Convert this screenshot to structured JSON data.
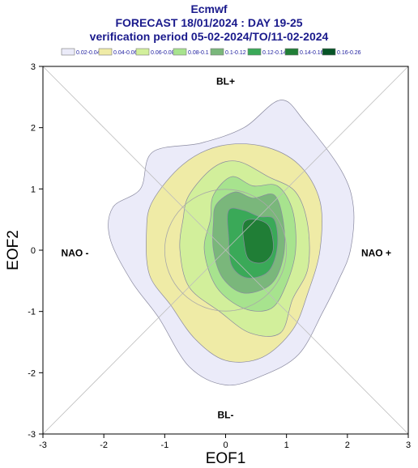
{
  "header": {
    "line1": "Ecmwf",
    "line2": "FORECAST 18/01/2024 : DAY 19-25",
    "line3": "verification period 05-02-2024/TO/11-02-2024"
  },
  "legend": [
    {
      "label": "0.02-0.04",
      "color": "#ebebf9"
    },
    {
      "label": "0.04-0.06",
      "color": "#efeba6"
    },
    {
      "label": "0.06-0.08",
      "color": "#d2ef9b"
    },
    {
      "label": "0.08-0.1",
      "color": "#a7e38e"
    },
    {
      "label": "0.1-0.12",
      "color": "#7ab77b"
    },
    {
      "label": "0.12-0.14",
      "color": "#3aa958"
    },
    {
      "label": "0.14-0.16",
      "color": "#207e36"
    },
    {
      "label": "0.16-0.26",
      "color": "#065426"
    }
  ],
  "chart_data": {
    "type": "contour",
    "xlabel": "EOF1",
    "ylabel": "EOF2",
    "xlim": [
      -3,
      3
    ],
    "ylim": [
      -3,
      3
    ],
    "xticks": [
      "-3",
      "-2",
      "-1",
      "0",
      "1",
      "2",
      "3"
    ],
    "yticks": [
      "-3",
      "-2",
      "-1",
      "0",
      "1",
      "2",
      "3"
    ],
    "regime_labels": {
      "top": "BL+",
      "bottom": "BL-",
      "left": "NAO -",
      "right": "NAO +"
    },
    "unit_circle_radius": 1,
    "contours": [
      {
        "level": "0.02-0.04",
        "fill": "#ebebf9",
        "points": [
          [
            -1.4,
            1.0
          ],
          [
            -1.2,
            1.6
          ],
          [
            -0.4,
            1.75
          ],
          [
            0.3,
            2.0
          ],
          [
            0.9,
            2.45
          ],
          [
            1.3,
            2.1
          ],
          [
            1.9,
            1.3
          ],
          [
            2.1,
            0.7
          ],
          [
            2.05,
            0.0
          ],
          [
            1.85,
            -0.5
          ],
          [
            1.6,
            -1.0
          ],
          [
            1.2,
            -1.7
          ],
          [
            0.6,
            -2.05
          ],
          [
            0.0,
            -2.2
          ],
          [
            -0.6,
            -1.9
          ],
          [
            -1.1,
            -1.1
          ],
          [
            -1.55,
            -0.5
          ],
          [
            -1.9,
            0.2
          ],
          [
            -1.85,
            0.7
          ]
        ]
      },
      {
        "level": "0.04-0.06",
        "fill": "#efeba6",
        "points": [
          [
            -1.2,
            0.8
          ],
          [
            -0.7,
            1.4
          ],
          [
            -0.1,
            1.7
          ],
          [
            0.6,
            1.7
          ],
          [
            1.2,
            1.4
          ],
          [
            1.55,
            0.8
          ],
          [
            1.55,
            0.0
          ],
          [
            1.35,
            -0.7
          ],
          [
            1.1,
            -1.3
          ],
          [
            0.6,
            -1.75
          ],
          [
            0.0,
            -1.8
          ],
          [
            -0.5,
            -1.45
          ],
          [
            -0.9,
            -0.9
          ],
          [
            -1.25,
            -0.4
          ],
          [
            -1.3,
            0.3
          ]
        ]
      },
      {
        "level": "0.06-0.08",
        "fill": "#d2ef9b",
        "points": [
          [
            -0.6,
            0.9
          ],
          [
            -0.2,
            1.35
          ],
          [
            0.2,
            1.45
          ],
          [
            0.7,
            1.2
          ],
          [
            1.15,
            0.95
          ],
          [
            1.35,
            0.4
          ],
          [
            1.35,
            -0.3
          ],
          [
            1.1,
            -0.8
          ],
          [
            0.9,
            -1.35
          ],
          [
            0.4,
            -1.35
          ],
          [
            -0.1,
            -1.0
          ],
          [
            -0.6,
            -0.6
          ],
          [
            -0.75,
            0.0
          ],
          [
            -0.7,
            0.5
          ]
        ]
      },
      {
        "level": "0.08-0.1",
        "fill": "#a7e38e",
        "points": [
          [
            -0.2,
            0.9
          ],
          [
            0.1,
            1.2
          ],
          [
            0.45,
            1.05
          ],
          [
            0.85,
            1.05
          ],
          [
            1.1,
            0.65
          ],
          [
            1.15,
            0.0
          ],
          [
            1.0,
            -0.55
          ],
          [
            0.75,
            -0.95
          ],
          [
            0.3,
            -0.95
          ],
          [
            -0.15,
            -0.6
          ],
          [
            -0.35,
            0.0
          ],
          [
            -0.25,
            0.5
          ]
        ]
      },
      {
        "level": "0.1-0.12",
        "fill": "#7ab77b",
        "points": [
          [
            -0.15,
            0.75
          ],
          [
            0.15,
            0.95
          ],
          [
            0.45,
            0.85
          ],
          [
            0.8,
            0.9
          ],
          [
            0.95,
            0.45
          ],
          [
            0.95,
            -0.1
          ],
          [
            0.75,
            -0.55
          ],
          [
            0.3,
            -0.7
          ],
          [
            -0.05,
            -0.45
          ],
          [
            -0.2,
            0.0
          ],
          [
            -0.2,
            0.45
          ]
        ]
      },
      {
        "level": "0.12-0.14",
        "fill": "#3aa958",
        "points": [
          [
            0.05,
            0.65
          ],
          [
            0.3,
            0.65
          ],
          [
            0.55,
            0.55
          ],
          [
            0.8,
            0.5
          ],
          [
            0.85,
            0.05
          ],
          [
            0.7,
            -0.35
          ],
          [
            0.35,
            -0.45
          ],
          [
            0.1,
            -0.25
          ],
          [
            0.05,
            0.2
          ]
        ]
      },
      {
        "level": "0.14-0.16",
        "fill": "#207e36",
        "points": [
          [
            0.3,
            0.45
          ],
          [
            0.5,
            0.5
          ],
          [
            0.72,
            0.38
          ],
          [
            0.78,
            0.0
          ],
          [
            0.62,
            -0.2
          ],
          [
            0.38,
            -0.15
          ],
          [
            0.3,
            0.15
          ]
        ]
      }
    ]
  }
}
